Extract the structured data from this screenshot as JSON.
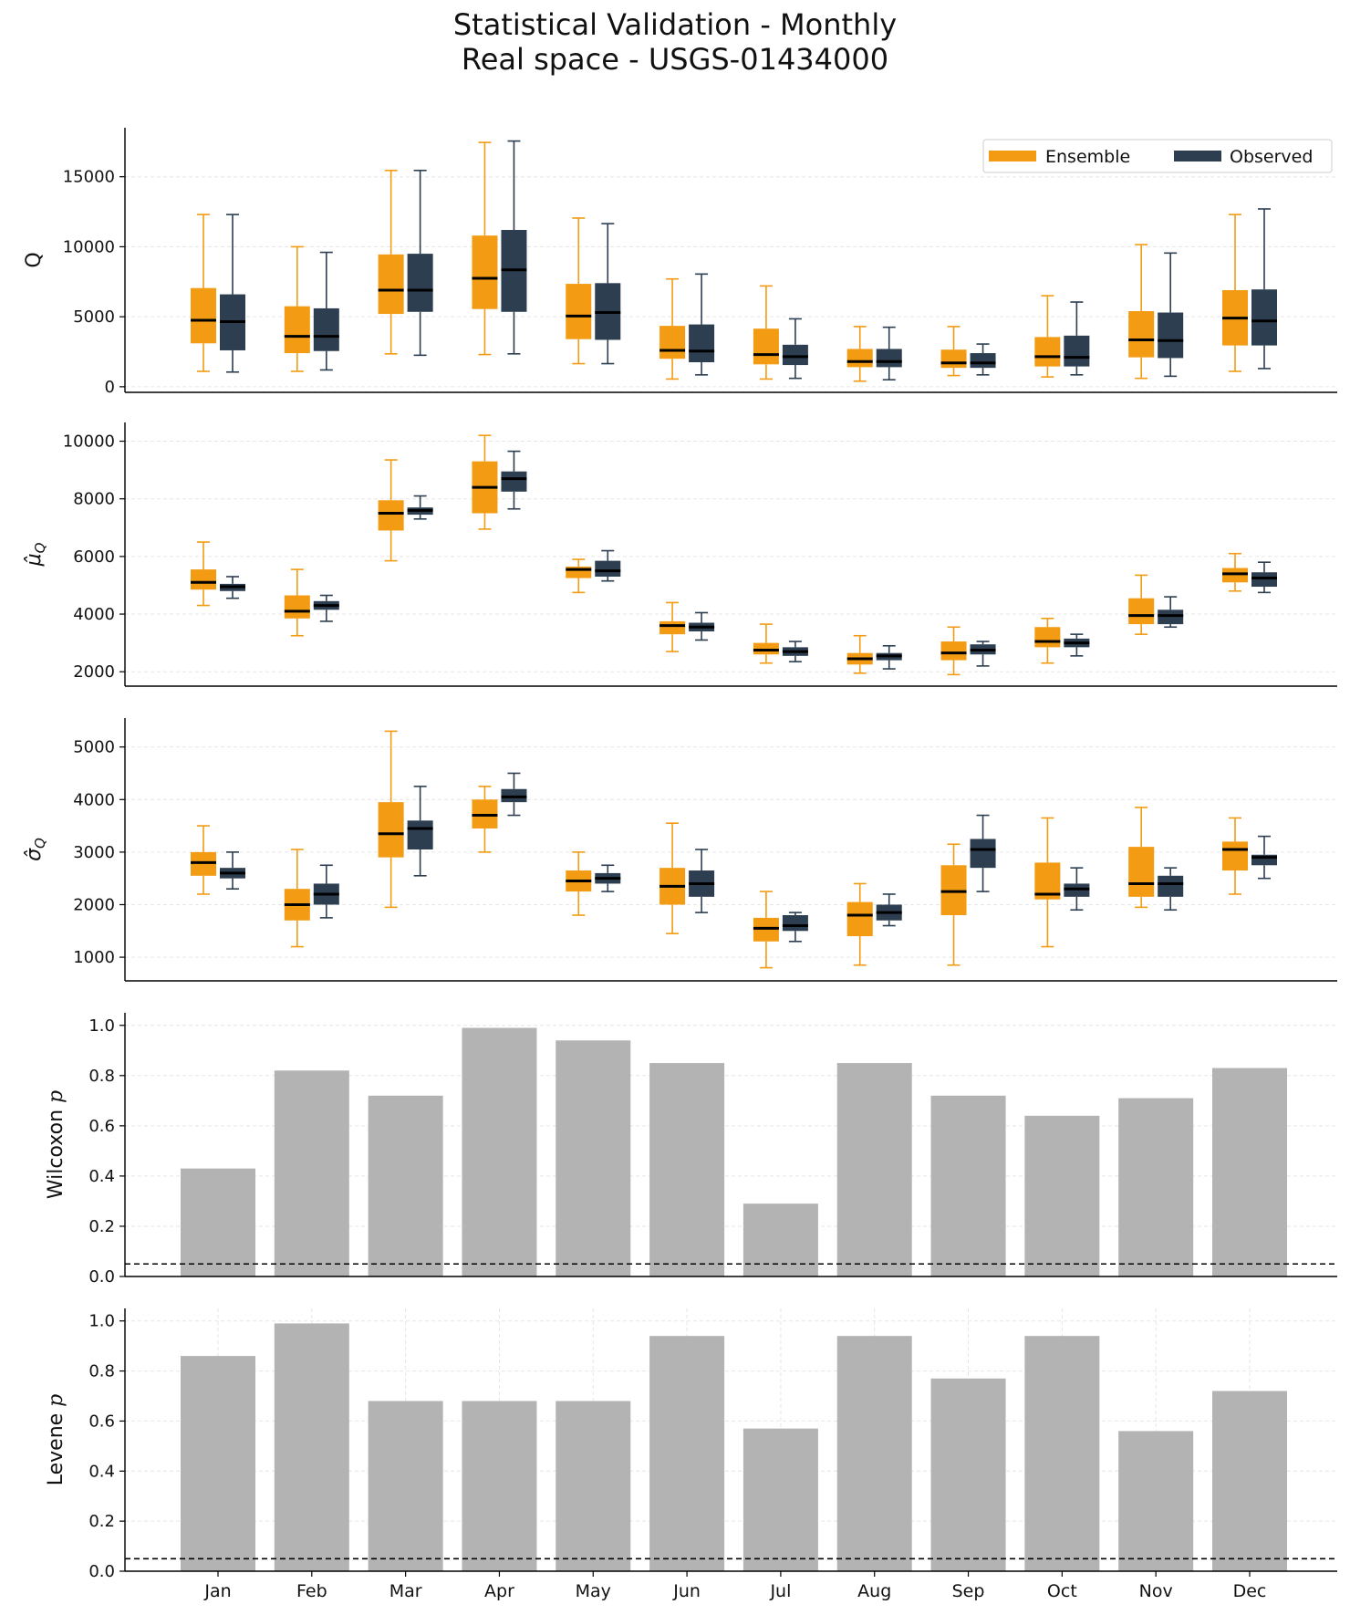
{
  "title_line1": "Statistical Validation - Monthly",
  "title_line2": "Real space - USGS-01434000",
  "colors": {
    "ensemble": "#F29B13",
    "observed": "#2C3E50",
    "bar": "#B3B3B3",
    "median": "#000000"
  },
  "chart_data": [
    {
      "type": "box",
      "ylabel": "Q",
      "ylim": [
        -400,
        18500
      ],
      "yticks": [
        0,
        5000,
        10000,
        15000
      ],
      "ytick_labels": [
        "0",
        "5000",
        "10000",
        "15000"
      ],
      "categories": [
        "Jan",
        "Feb",
        "Mar",
        "Apr",
        "May",
        "Jun",
        "Jul",
        "Aug",
        "Sep",
        "Oct",
        "Nov",
        "Dec"
      ],
      "legend": {
        "position": "top-right",
        "entries": [
          "Ensemble",
          "Observed"
        ]
      },
      "series": [
        {
          "name": "Ensemble",
          "boxes": [
            [
              1100,
              3100,
              4750,
              7050,
              12300
            ],
            [
              1100,
              2400,
              3600,
              5750,
              10000
            ],
            [
              2350,
              5200,
              6900,
              9450,
              15450
            ],
            [
              2300,
              5550,
              7750,
              10800,
              17450
            ],
            [
              1650,
              3400,
              5050,
              7350,
              12050
            ],
            [
              550,
              2000,
              2600,
              4350,
              7700
            ],
            [
              550,
              1600,
              2300,
              4150,
              7200
            ],
            [
              400,
              1400,
              1800,
              2700,
              4300
            ],
            [
              800,
              1350,
              1700,
              2650,
              4300
            ],
            [
              700,
              1450,
              2150,
              3550,
              6500
            ],
            [
              600,
              2100,
              3350,
              5400,
              10150
            ],
            [
              1100,
              2950,
              4900,
              6900,
              12300
            ]
          ]
        },
        {
          "name": "Observed",
          "boxes": [
            [
              1050,
              2600,
              4650,
              6600,
              12300
            ],
            [
              1200,
              2550,
              3600,
              5600,
              9600
            ],
            [
              2250,
              5350,
              6900,
              9500,
              15450
            ],
            [
              2350,
              5350,
              8350,
              11200,
              17550
            ],
            [
              1650,
              3350,
              5300,
              7400,
              11650
            ],
            [
              850,
              1750,
              2550,
              4450,
              8050
            ],
            [
              600,
              1550,
              2150,
              3000,
              4850
            ],
            [
              500,
              1400,
              1800,
              2700,
              4250
            ],
            [
              850,
              1350,
              1700,
              2400,
              3050
            ],
            [
              850,
              1450,
              2100,
              3650,
              6050
            ],
            [
              750,
              2050,
              3300,
              5300,
              9550
            ],
            [
              1300,
              2950,
              4700,
              6950,
              12700
            ]
          ]
        }
      ]
    },
    {
      "type": "box",
      "ylabel": "μ̂Q",
      "ylim": [
        1500,
        10650
      ],
      "yticks": [
        2000,
        4000,
        6000,
        8000,
        10000
      ],
      "ytick_labels": [
        "2000",
        "4000",
        "6000",
        "8000",
        "10000"
      ],
      "categories": [
        "Jan",
        "Feb",
        "Mar",
        "Apr",
        "May",
        "Jun",
        "Jul",
        "Aug",
        "Sep",
        "Oct",
        "Nov",
        "Dec"
      ],
      "series": [
        {
          "name": "Ensemble",
          "boxes": [
            [
              4300,
              4850,
              5100,
              5550,
              6500
            ],
            [
              3250,
              3850,
              4100,
              4650,
              5550
            ],
            [
              5850,
              6900,
              7500,
              7950,
              9350
            ],
            [
              6950,
              7500,
              8400,
              9300,
              10200
            ],
            [
              4750,
              5250,
              5550,
              5650,
              5900
            ],
            [
              2700,
              3300,
              3600,
              3750,
              4400
            ],
            [
              2300,
              2600,
              2750,
              3000,
              3650
            ],
            [
              1950,
              2250,
              2450,
              2650,
              3250
            ],
            [
              1900,
              2400,
              2650,
              3050,
              3550
            ],
            [
              2300,
              2850,
              3050,
              3550,
              3850
            ],
            [
              3300,
              3650,
              3950,
              4550,
              5350
            ],
            [
              4800,
              5100,
              5400,
              5600,
              6100
            ]
          ]
        },
        {
          "name": "Observed",
          "boxes": [
            [
              4550,
              4800,
              4950,
              5050,
              5300
            ],
            [
              3750,
              4150,
              4300,
              4450,
              4650
            ],
            [
              7300,
              7450,
              7600,
              7700,
              8100
            ],
            [
              7650,
              8250,
              8700,
              8950,
              9650
            ],
            [
              5150,
              5300,
              5500,
              5850,
              6200
            ],
            [
              3100,
              3400,
              3550,
              3700,
              4050
            ],
            [
              2350,
              2550,
              2700,
              2850,
              3050
            ],
            [
              2100,
              2400,
              2550,
              2650,
              2900
            ],
            [
              2200,
              2600,
              2750,
              2950,
              3050
            ],
            [
              2550,
              2850,
              3000,
              3150,
              3300
            ],
            [
              3550,
              3650,
              3950,
              4150,
              4600
            ],
            [
              4750,
              4950,
              5250,
              5450,
              5800
            ]
          ]
        }
      ]
    },
    {
      "type": "box",
      "ylabel": "σ̂Q",
      "ylim": [
        550,
        5550
      ],
      "yticks": [
        1000,
        2000,
        3000,
        4000,
        5000
      ],
      "ytick_labels": [
        "1000",
        "2000",
        "3000",
        "4000",
        "5000"
      ],
      "categories": [
        "Jan",
        "Feb",
        "Mar",
        "Apr",
        "May",
        "Jun",
        "Jul",
        "Aug",
        "Sep",
        "Oct",
        "Nov",
        "Dec"
      ],
      "series": [
        {
          "name": "Ensemble",
          "boxes": [
            [
              2200,
              2550,
              2800,
              3000,
              3500
            ],
            [
              1200,
              1700,
              2000,
              2300,
              3050
            ],
            [
              1950,
              2900,
              3350,
              3950,
              5300
            ],
            [
              3000,
              3450,
              3700,
              4000,
              4250
            ],
            [
              1800,
              2250,
              2450,
              2650,
              3000
            ],
            [
              1450,
              2000,
              2350,
              2700,
              3550
            ],
            [
              800,
              1300,
              1550,
              1750,
              2250
            ],
            [
              850,
              1400,
              1800,
              2050,
              2400
            ],
            [
              850,
              1800,
              2250,
              2750,
              3150
            ],
            [
              1200,
              2100,
              2200,
              2800,
              3650
            ],
            [
              1950,
              2150,
              2400,
              3100,
              3850
            ],
            [
              2200,
              2650,
              3050,
              3200,
              3650
            ]
          ]
        },
        {
          "name": "Observed",
          "boxes": [
            [
              2300,
              2500,
              2600,
              2700,
              3000
            ],
            [
              1750,
              2000,
              2200,
              2400,
              2750
            ],
            [
              2550,
              3050,
              3450,
              3600,
              4250
            ],
            [
              3700,
              3950,
              4050,
              4200,
              4500
            ],
            [
              2250,
              2400,
              2500,
              2600,
              2750
            ],
            [
              1850,
              2150,
              2400,
              2650,
              3050
            ],
            [
              1300,
              1500,
              1600,
              1800,
              1850
            ],
            [
              1600,
              1700,
              1850,
              2000,
              2200
            ],
            [
              2250,
              2700,
              3050,
              3250,
              3700
            ],
            [
              1900,
              2150,
              2300,
              2400,
              2700
            ],
            [
              1900,
              2150,
              2400,
              2550,
              2700
            ],
            [
              2500,
              2750,
              2900,
              2950,
              3300
            ]
          ]
        }
      ]
    },
    {
      "type": "bar",
      "ylabel": "Wilcoxon p",
      "ylim": [
        0,
        1.05
      ],
      "yticks": [
        0,
        0.2,
        0.4,
        0.6,
        0.8,
        1.0
      ],
      "ytick_labels": [
        "0.0",
        "0.2",
        "0.4",
        "0.6",
        "0.8",
        "1.0"
      ],
      "categories": [
        "Jan",
        "Feb",
        "Mar",
        "Apr",
        "May",
        "Jun",
        "Jul",
        "Aug",
        "Sep",
        "Oct",
        "Nov",
        "Dec"
      ],
      "values": [
        0.43,
        0.82,
        0.72,
        0.99,
        0.94,
        0.85,
        0.29,
        0.85,
        0.72,
        0.64,
        0.71,
        0.83
      ],
      "threshold": 0.05
    },
    {
      "type": "bar",
      "ylabel": "Levene p",
      "ylim": [
        0,
        1.05
      ],
      "yticks": [
        0,
        0.2,
        0.4,
        0.6,
        0.8,
        1.0
      ],
      "ytick_labels": [
        "0.0",
        "0.2",
        "0.4",
        "0.6",
        "0.8",
        "1.0"
      ],
      "categories": [
        "Jan",
        "Feb",
        "Mar",
        "Apr",
        "May",
        "Jun",
        "Jul",
        "Aug",
        "Sep",
        "Oct",
        "Nov",
        "Dec"
      ],
      "xtick_labels": [
        "Jan",
        "Feb",
        "Mar",
        "Apr",
        "May",
        "Jun",
        "Jul",
        "Aug",
        "Sep",
        "Oct",
        "Nov",
        "Dec"
      ],
      "values": [
        0.86,
        0.99,
        0.68,
        0.68,
        0.68,
        0.94,
        0.57,
        0.94,
        0.77,
        0.94,
        0.56,
        0.72
      ],
      "threshold": 0.05
    }
  ]
}
